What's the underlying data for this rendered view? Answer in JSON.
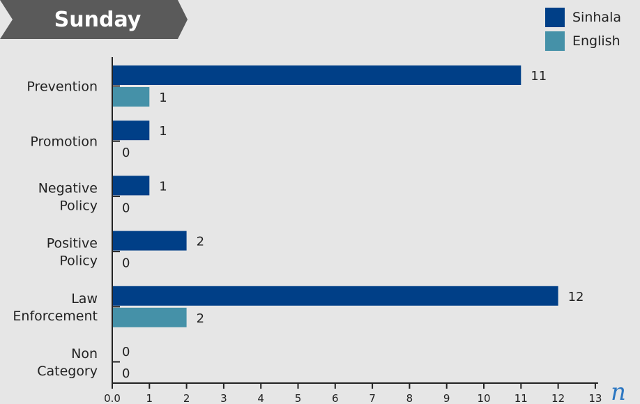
{
  "title": "Sunday",
  "colors": {
    "background": "#e6e6e6",
    "title_banner": "#5a5a5a",
    "series_sinhala": "#003f87",
    "series_english": "#4591a8",
    "axis": "#222222",
    "unit_symbol": "#2b76c1"
  },
  "chart_data": {
    "type": "bar",
    "orientation": "horizontal",
    "categories": [
      [
        "Prevention"
      ],
      [
        "Promotion"
      ],
      [
        "Negative",
        "Policy"
      ],
      [
        "Positive",
        "Policy"
      ],
      [
        "Law",
        "Enforcement"
      ],
      [
        "Non",
        "Category"
      ]
    ],
    "series": [
      {
        "name": "Sinhala",
        "values": [
          11,
          1,
          1,
          2,
          12,
          0
        ]
      },
      {
        "name": "English",
        "values": [
          1,
          0,
          0,
          0,
          2,
          0
        ]
      }
    ],
    "x_ticks": [
      "0.0",
      "1",
      "2",
      "3",
      "4",
      "5",
      "6",
      "7",
      "8",
      "9",
      "10",
      "11",
      "12",
      "13"
    ],
    "xlim": [
      0,
      13
    ],
    "x_unit_symbol": "n",
    "legend_position": "top-right",
    "grid": false
  }
}
